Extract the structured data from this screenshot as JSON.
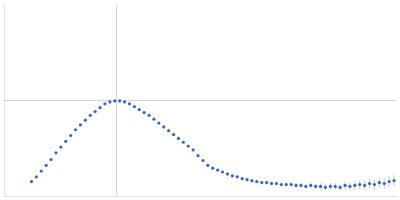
{
  "chart_data": {
    "type": "scatter",
    "color": "#3a68b8",
    "marker": "circle",
    "grid": true,
    "tick_labels": false,
    "xlim": [
      0,
      400
    ],
    "ylim": [
      0,
      200
    ],
    "xticks": [
      115
    ],
    "yticks": [
      100
    ],
    "x": [
      28,
      33,
      38,
      43,
      48,
      53,
      58,
      63,
      68,
      73,
      78,
      83,
      88,
      93,
      98,
      103,
      108,
      113,
      118,
      123,
      128,
      133,
      138,
      143,
      148,
      153,
      158,
      163,
      168,
      173,
      178,
      183,
      188,
      193,
      198,
      203,
      208,
      213,
      218,
      223,
      228,
      233,
      238,
      243,
      248,
      253,
      258,
      263,
      268,
      273,
      278,
      283,
      288,
      293,
      298,
      303,
      308,
      313,
      318,
      323,
      328,
      333,
      338,
      343,
      348,
      353,
      358,
      363,
      368,
      373,
      378,
      383,
      388,
      393,
      398
    ],
    "values": [
      15,
      20,
      26,
      32,
      38,
      45,
      51,
      57,
      63,
      69,
      74,
      79,
      84,
      88,
      92,
      96,
      98,
      99,
      99,
      98,
      96,
      93,
      90,
      87,
      84,
      80,
      76,
      72,
      68,
      64,
      60,
      56,
      52,
      48,
      42,
      37,
      32,
      29,
      27,
      25,
      23,
      21,
      20,
      18,
      17,
      16,
      15,
      14,
      14,
      13,
      13,
      12,
      12,
      12,
      11,
      11,
      10,
      11,
      10,
      10,
      9,
      10,
      10,
      9,
      11,
      10,
      11,
      12,
      11,
      13,
      12,
      14,
      13,
      15,
      16
    ],
    "errors": [
      0.5,
      0.5,
      0.5,
      0.5,
      0.5,
      0.5,
      0.5,
      0.5,
      0.5,
      0.5,
      0.5,
      0.5,
      0.5,
      0.5,
      0.5,
      0.5,
      0.5,
      0.5,
      0.5,
      0.5,
      0.5,
      0.5,
      0.6,
      0.6,
      0.6,
      0.6,
      0.7,
      0.7,
      0.7,
      0.8,
      0.8,
      0.8,
      0.9,
      0.9,
      1,
      1,
      1,
      1.1,
      1.2,
      1.2,
      1.3,
      1.4,
      1.5,
      1.5,
      1.6,
      1.7,
      1.8,
      1.9,
      2,
      2.1,
      2.2,
      2.3,
      2.4,
      2.5,
      2.6,
      2.7,
      2.8,
      3,
      3.1,
      3.2,
      3.4,
      3.5,
      3.7,
      3.9,
      4,
      4.2,
      4.4,
      4.6,
      4.8,
      5,
      5.2,
      5.4,
      5.6,
      5.8,
      6
    ]
  }
}
